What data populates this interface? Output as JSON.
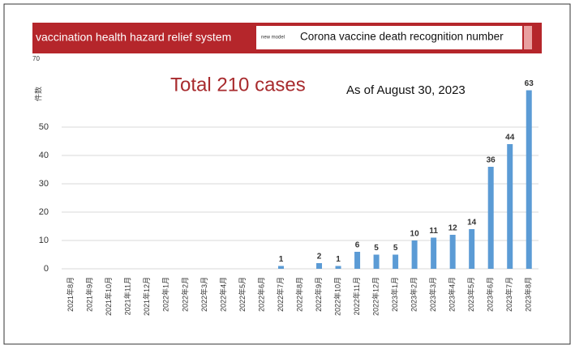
{
  "header": {
    "system": "vaccination health hazard relief system",
    "badge": "new model",
    "label": "Corona vaccine death recognition number"
  },
  "chart_data": {
    "type": "bar",
    "title": "Total 210 cases",
    "subtitle": "As of August 30, 2023",
    "y_label": "件数",
    "categories": [
      "2021年8月",
      "2021年9月",
      "2021年10月",
      "2021年11月",
      "2021年12月",
      "2022年1月",
      "2022年2月",
      "2022年3月",
      "2022年4月",
      "2022年5月",
      "2022年6月",
      "2022年7月",
      "2022年8月",
      "2022年9月",
      "2022年10月",
      "2022年11月",
      "2022年12月",
      "2023年1月",
      "2023年2月",
      "2023年3月",
      "2023年4月",
      "2023年5月",
      "2023年6月",
      "2023年7月",
      "2023年8月"
    ],
    "values": [
      0,
      0,
      0,
      0,
      0,
      0,
      0,
      0,
      0,
      0,
      0,
      1,
      0,
      2,
      1,
      6,
      5,
      5,
      10,
      11,
      12,
      14,
      36,
      44,
      63
    ],
    "color": "#5b9bd5",
    "ylim": [
      0,
      70
    ],
    "yticks": [
      0,
      10,
      20,
      30,
      40,
      50,
      70
    ],
    "grid": true
  }
}
